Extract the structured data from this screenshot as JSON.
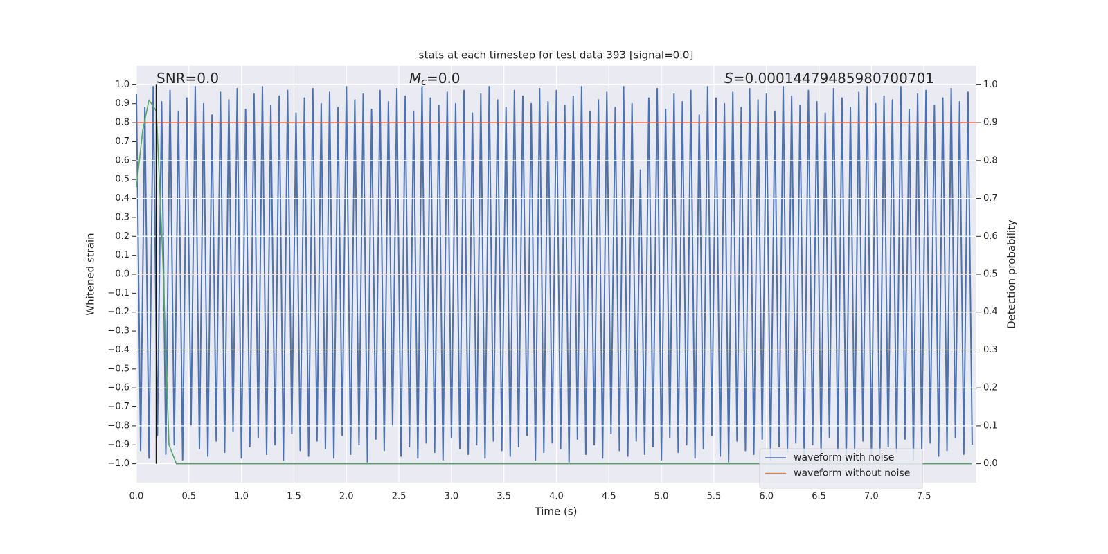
{
  "chart_data": {
    "type": "line",
    "title": "stats at each timestep for test data 393 [signal=0.0]",
    "xlabel": "Time (s)",
    "ylabel": "Whitened strain",
    "y2label": "Detection probability",
    "annotations": [
      {
        "parts": [
          {
            "text": "SNR=0.0"
          }
        ]
      },
      {
        "parts": [
          {
            "text": "M",
            "style": "italic"
          },
          {
            "text": "c",
            "style": "italic-sub"
          },
          {
            "text": "=0.0"
          }
        ]
      },
      {
        "parts": [
          {
            "text": "S",
            "style": "italic"
          },
          {
            "text": "=0.00014479485980700701"
          }
        ]
      }
    ],
    "xlim": [
      0,
      8
    ],
    "ylim": [
      -1.1,
      1.1
    ],
    "y2lim": [
      -0.05,
      1.05
    ],
    "xticks": [
      {
        "value": 0,
        "label": "0.0"
      },
      0.5,
      {
        "value": 1,
        "label": "1.0"
      },
      1.5,
      {
        "value": 2,
        "label": "2.0"
      },
      2.5,
      {
        "value": 3,
        "label": "3.0"
      },
      3.5,
      {
        "value": 4,
        "label": "4.0"
      },
      4.5,
      {
        "value": 5,
        "label": "5.0"
      },
      5.5,
      {
        "value": 6,
        "label": "6.0"
      },
      6.5,
      {
        "value": 7,
        "label": "7.0"
      },
      7.5
    ],
    "yticks": [
      {
        "value": 1,
        "label": "1.0"
      },
      0.9,
      0.8,
      0.7,
      0.6,
      0.5,
      0.4,
      0.3,
      0.2,
      0.1,
      {
        "value": 0,
        "label": "0.0"
      },
      {
        "value": -0.1,
        "label": "−0.1"
      },
      {
        "value": -0.2,
        "label": "−0.2"
      },
      {
        "value": -0.3,
        "label": "−0.3"
      },
      {
        "value": -0.4,
        "label": "−0.4"
      },
      {
        "value": -0.5,
        "label": "−0.5"
      },
      {
        "value": -0.6,
        "label": "−0.6"
      },
      {
        "value": -0.7,
        "label": "−0.7"
      },
      {
        "value": -0.8,
        "label": "−0.8"
      },
      {
        "value": -0.9,
        "label": "−0.9"
      },
      {
        "value": -1,
        "label": "−1.0"
      }
    ],
    "y2ticks": [
      {
        "value": 0,
        "label": "0.0"
      },
      0.1,
      0.2,
      0.3,
      0.4,
      0.5,
      0.6,
      0.7,
      0.8,
      0.9,
      {
        "value": 1,
        "label": "1.0"
      }
    ],
    "grid": [
      "x",
      "y2"
    ],
    "legend": "lower right",
    "series": [
      {
        "name": "waveform with noise",
        "color": "#4c72b0",
        "x": [
          0,
          0.04,
          0.08,
          0.12,
          0.16,
          0.2,
          0.24,
          0.28,
          0.32,
          0.36,
          0.4,
          0.44,
          0.48,
          0.52,
          0.56,
          0.6,
          0.64,
          0.68,
          0.72,
          0.76,
          0.8,
          0.84,
          0.88,
          0.92,
          0.96,
          1,
          1.04,
          1.08,
          1.12,
          1.16,
          1.2,
          1.24,
          1.28,
          1.32,
          1.36,
          1.4,
          1.44,
          1.48,
          1.52,
          1.56,
          1.6,
          1.64,
          1.68,
          1.72,
          1.76,
          1.8,
          1.84,
          1.88,
          1.92,
          1.96,
          2,
          2.04,
          2.08,
          2.12,
          2.16,
          2.2,
          2.24,
          2.28,
          2.32,
          2.36,
          2.4,
          2.44,
          2.48,
          2.52,
          2.56,
          2.6,
          2.64,
          2.68,
          2.72,
          2.76,
          2.8,
          2.84,
          2.88,
          2.92,
          2.96,
          3,
          3.04,
          3.08,
          3.12,
          3.16,
          3.2,
          3.24,
          3.28,
          3.32,
          3.36,
          3.4,
          3.44,
          3.48,
          3.52,
          3.56,
          3.6,
          3.64,
          3.68,
          3.72,
          3.76,
          3.8,
          3.84,
          3.88,
          3.92,
          3.96,
          4,
          4.04,
          4.08,
          4.12,
          4.16,
          4.2,
          4.24,
          4.28,
          4.32,
          4.36,
          4.4,
          4.44,
          4.48,
          4.52,
          4.56,
          4.6,
          4.64,
          4.68,
          4.72,
          4.76,
          4.8,
          4.84,
          4.88,
          4.92,
          4.96,
          5,
          5.04,
          5.08,
          5.12,
          5.16,
          5.2,
          5.24,
          5.28,
          5.32,
          5.36,
          5.4,
          5.44,
          5.48,
          5.52,
          5.56,
          5.6,
          5.64,
          5.68,
          5.72,
          5.76,
          5.8,
          5.84,
          5.88,
          5.92,
          5.96,
          6,
          6.04,
          6.08,
          6.12,
          6.16,
          6.2,
          6.24,
          6.28,
          6.32,
          6.36,
          6.4,
          6.44,
          6.48,
          6.52,
          6.56,
          6.6,
          6.64,
          6.68,
          6.72,
          6.76,
          6.8,
          6.84,
          6.88,
          6.92,
          6.96,
          7,
          7.04,
          7.08,
          7.12,
          7.16,
          7.2,
          7.24,
          7.28,
          7.32,
          7.36,
          7.4,
          7.44,
          7.48,
          7.52,
          7.56,
          7.6,
          7.64,
          7.68,
          7.72,
          7.76,
          7.8,
          7.84,
          7.88,
          7.92,
          7.96
        ],
        "values": [
          0.95,
          -0.93,
          0.88,
          -0.97,
          0.99,
          -0.85,
          0.91,
          -0.95,
          0.97,
          -0.9,
          0.86,
          -0.98,
          0.93,
          -0.8,
          0.99,
          -0.92,
          0.9,
          -0.96,
          0.84,
          -0.88,
          0.96,
          -0.94,
          0.92,
          -0.83,
          0.98,
          -0.97,
          0.87,
          -0.91,
          0.95,
          -0.86,
          0.99,
          -0.95,
          0.89,
          -0.9,
          0.94,
          -0.98,
          0.97,
          -0.84,
          0.85,
          -0.93,
          0.93,
          -0.96,
          0.98,
          -0.88,
          0.9,
          -0.92,
          0.96,
          -0.97,
          0.88,
          -0.85,
          0.99,
          -0.95,
          0.92,
          -0.9,
          0.95,
          -0.99,
          0.87,
          -0.87,
          0.97,
          -0.93,
          0.91,
          -0.8,
          0.98,
          -0.96,
          0.94,
          -0.91,
          0.86,
          -0.97,
          0.99,
          -0.89,
          0.93,
          -0.94,
          0.89,
          -0.98,
          0.96,
          -0.86,
          0.9,
          -0.92,
          0.97,
          -0.95,
          0.85,
          -0.9,
          0.95,
          -0.97,
          0.99,
          -0.88,
          0.92,
          -0.93,
          0.88,
          -0.96,
          0.97,
          -0.91,
          0.94,
          -0.85,
          0.9,
          -0.98,
          0.98,
          -0.94,
          0.91,
          -0.89,
          0.97,
          -0.92,
          0.89,
          -0.99,
          0.94,
          -0.87,
          0.99,
          -0.95,
          0.86,
          -0.9,
          0.92,
          -0.97,
          0.96,
          -0.84,
          0.88,
          -0.93,
          0.99,
          -0.96,
          0.9,
          -0.88,
          0.55,
          -0.95,
          0.93,
          -0.91,
          0.98,
          -0.98,
          0.87,
          -0.86,
          0.95,
          -0.94,
          0.91,
          -0.9,
          0.97,
          -0.97,
          0.84,
          -0.92,
          0.99,
          -0.85,
          0.93,
          -0.96,
          0.9,
          -0.99,
          0.96,
          -0.88,
          0.88,
          -0.93,
          0.98,
          -0.95,
          0.92,
          -0.87,
          0.95,
          -0.98,
          0.86,
          -0.91,
          0.99,
          -0.94,
          0.94,
          -0.89,
          0.89,
          -0.97,
          0.97,
          -0.9,
          0.91,
          -0.96,
          0.85,
          -0.86,
          0.98,
          -0.93,
          0.93,
          -0.99,
          0.88,
          -0.92,
          0.96,
          -0.88,
          0.99,
          -0.95,
          0.9,
          -0.97,
          0.94,
          -0.91,
          0.92,
          -0.94,
          0.99,
          -0.87,
          0.87,
          -0.98,
          0.95,
          -0.92,
          0.97,
          -0.89,
          0.89,
          -0.96,
          0.93,
          -0.93,
          0.98,
          -0.86,
          0.91,
          -0.95,
          0.96,
          -0.9
        ]
      },
      {
        "name": "waveform without noise",
        "color": "#dd8452",
        "x": [
          0,
          7.96
        ],
        "values": [
          0,
          0
        ]
      },
      {
        "color": "#55a868",
        "axis": "y2",
        "x": [
          0,
          0.06,
          0.12,
          0.19,
          0.25,
          0.31,
          0.38,
          7.96
        ],
        "values": [
          0.73,
          0.88,
          0.96,
          0.93,
          0.55,
          0.05,
          0,
          0
        ]
      }
    ],
    "hlines": [
      {
        "value": 0.9,
        "axis": "y2",
        "color": "#d65f3e"
      }
    ],
    "vlines": [
      {
        "x": 0.19,
        "y": [
          -1,
          1
        ],
        "color": "#111111"
      }
    ]
  }
}
